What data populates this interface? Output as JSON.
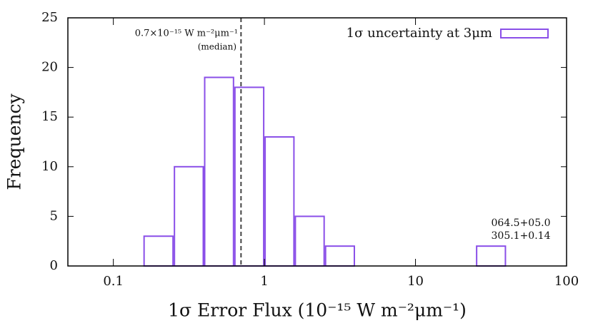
{
  "chart_data": {
    "type": "histogram",
    "xlabel": "1σ Error Flux (10⁻¹⁵ W m⁻²μm⁻¹)",
    "ylabel": "Frequency",
    "bins": [
      0.158,
      0.251,
      0.398,
      0.631,
      1,
      1.585,
      2.512,
      3.981,
      6.31,
      10,
      15.85,
      25.12,
      39.81
    ],
    "series": [
      {
        "name": "1σ uncertainty at 3μm",
        "color": "#8a4fe8",
        "values": [
          3,
          10,
          19,
          18,
          13,
          5,
          2,
          0,
          0,
          0,
          0,
          2
        ]
      }
    ],
    "xlim": [
      0.05,
      100
    ],
    "xscale": "log",
    "xticks": [
      0.1,
      1,
      10,
      100
    ],
    "ylim": [
      0,
      25
    ],
    "yticks": [
      0,
      5,
      10,
      15,
      20,
      25
    ],
    "legend": "upper right",
    "median": {
      "value": 0.7,
      "label": "0.7×10⁻¹⁵ W m⁻²μm⁻¹",
      "note": "(median)"
    },
    "annotation": [
      "064.5+05.0",
      "305.1+0.14"
    ]
  }
}
